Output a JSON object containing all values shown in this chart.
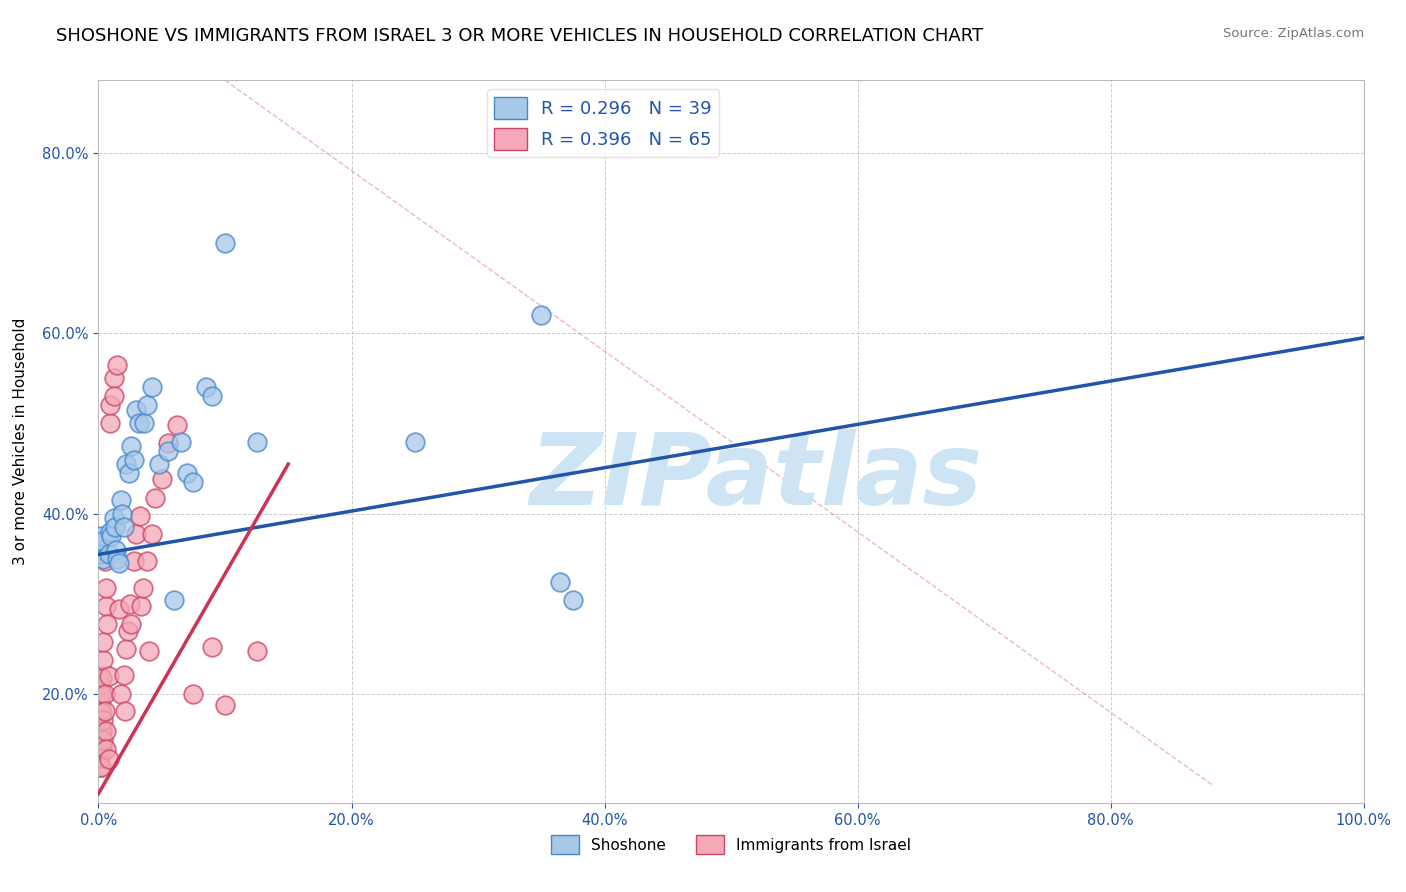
{
  "title": "SHOSHONE VS IMMIGRANTS FROM ISRAEL 3 OR MORE VEHICLES IN HOUSEHOLD CORRELATION CHART",
  "source": "Source: ZipAtlas.com",
  "ylabel": "3 or more Vehicles in Household",
  "xlim": [
    0,
    1.0
  ],
  "ylim": [
    0.08,
    0.88
  ],
  "blue_R": 0.296,
  "blue_N": 39,
  "pink_R": 0.396,
  "pink_N": 65,
  "blue_color": "#a8c8e8",
  "pink_color": "#f4a8b8",
  "blue_edge_color": "#4488cc",
  "pink_edge_color": "#cc4466",
  "blue_line_color": "#2255aa",
  "pink_line_color": "#cc3355",
  "grid_color": "#cccccc",
  "watermark": "ZIPatlas",
  "watermark_color": "#cce4f4",
  "blue_dots": [
    [
      0.001,
      0.355
    ],
    [
      0.002,
      0.36
    ],
    [
      0.002,
      0.375
    ],
    [
      0.003,
      0.37
    ],
    [
      0.004,
      0.35
    ],
    [
      0.008,
      0.355
    ],
    [
      0.009,
      0.38
    ],
    [
      0.01,
      0.375
    ],
    [
      0.012,
      0.395
    ],
    [
      0.013,
      0.385
    ],
    [
      0.014,
      0.36
    ],
    [
      0.015,
      0.35
    ],
    [
      0.016,
      0.345
    ],
    [
      0.018,
      0.415
    ],
    [
      0.019,
      0.4
    ],
    [
      0.02,
      0.385
    ],
    [
      0.022,
      0.455
    ],
    [
      0.024,
      0.445
    ],
    [
      0.026,
      0.475
    ],
    [
      0.028,
      0.46
    ],
    [
      0.03,
      0.515
    ],
    [
      0.032,
      0.5
    ],
    [
      0.036,
      0.5
    ],
    [
      0.038,
      0.52
    ],
    [
      0.042,
      0.54
    ],
    [
      0.048,
      0.455
    ],
    [
      0.055,
      0.47
    ],
    [
      0.06,
      0.305
    ],
    [
      0.065,
      0.48
    ],
    [
      0.07,
      0.445
    ],
    [
      0.075,
      0.435
    ],
    [
      0.085,
      0.54
    ],
    [
      0.09,
      0.53
    ],
    [
      0.1,
      0.7
    ],
    [
      0.125,
      0.48
    ],
    [
      0.25,
      0.48
    ],
    [
      0.35,
      0.62
    ],
    [
      0.365,
      0.325
    ],
    [
      0.375,
      0.305
    ]
  ],
  "pink_dots": [
    [
      0.001,
      0.12
    ],
    [
      0.001,
      0.132
    ],
    [
      0.001,
      0.148
    ],
    [
      0.001,
      0.158
    ],
    [
      0.001,
      0.163
    ],
    [
      0.001,
      0.175
    ],
    [
      0.001,
      0.182
    ],
    [
      0.001,
      0.19
    ],
    [
      0.001,
      0.2
    ],
    [
      0.001,
      0.21
    ],
    [
      0.001,
      0.22
    ],
    [
      0.001,
      0.13
    ],
    [
      0.001,
      0.148
    ],
    [
      0.001,
      0.165
    ],
    [
      0.002,
      0.16
    ],
    [
      0.002,
      0.143
    ],
    [
      0.002,
      0.12
    ],
    [
      0.003,
      0.142
    ],
    [
      0.003,
      0.16
    ],
    [
      0.003,
      0.18
    ],
    [
      0.003,
      0.2
    ],
    [
      0.003,
      0.218
    ],
    [
      0.004,
      0.238
    ],
    [
      0.004,
      0.258
    ],
    [
      0.004,
      0.15
    ],
    [
      0.004,
      0.172
    ],
    [
      0.005,
      0.348
    ],
    [
      0.005,
      0.2
    ],
    [
      0.005,
      0.182
    ],
    [
      0.006,
      0.16
    ],
    [
      0.006,
      0.14
    ],
    [
      0.006,
      0.298
    ],
    [
      0.006,
      0.318
    ],
    [
      0.007,
      0.278
    ],
    [
      0.008,
      0.22
    ],
    [
      0.008,
      0.128
    ],
    [
      0.009,
      0.5
    ],
    [
      0.009,
      0.52
    ],
    [
      0.012,
      0.55
    ],
    [
      0.012,
      0.53
    ],
    [
      0.015,
      0.565
    ],
    [
      0.016,
      0.295
    ],
    [
      0.018,
      0.2
    ],
    [
      0.02,
      0.222
    ],
    [
      0.021,
      0.182
    ],
    [
      0.022,
      0.25
    ],
    [
      0.023,
      0.27
    ],
    [
      0.025,
      0.3
    ],
    [
      0.026,
      0.278
    ],
    [
      0.028,
      0.348
    ],
    [
      0.03,
      0.378
    ],
    [
      0.033,
      0.398
    ],
    [
      0.034,
      0.298
    ],
    [
      0.035,
      0.318
    ],
    [
      0.038,
      0.348
    ],
    [
      0.04,
      0.248
    ],
    [
      0.042,
      0.378
    ],
    [
      0.045,
      0.418
    ],
    [
      0.05,
      0.438
    ],
    [
      0.055,
      0.478
    ],
    [
      0.062,
      0.498
    ],
    [
      0.075,
      0.2
    ],
    [
      0.09,
      0.252
    ],
    [
      0.1,
      0.188
    ],
    [
      0.125,
      0.248
    ]
  ],
  "blue_trendline_x": [
    0.0,
    1.0
  ],
  "blue_trendline_y": [
    0.355,
    0.595
  ],
  "pink_trendline_x": [
    0.0,
    0.15
  ],
  "pink_trendline_y": [
    0.09,
    0.455
  ],
  "ref_line_x": [
    0.1,
    0.88
  ],
  "ref_line_y": [
    0.88,
    0.1
  ],
  "title_fontsize": 13,
  "axis_label_fontsize": 11,
  "tick_fontsize": 10.5,
  "legend_fontsize": 13
}
